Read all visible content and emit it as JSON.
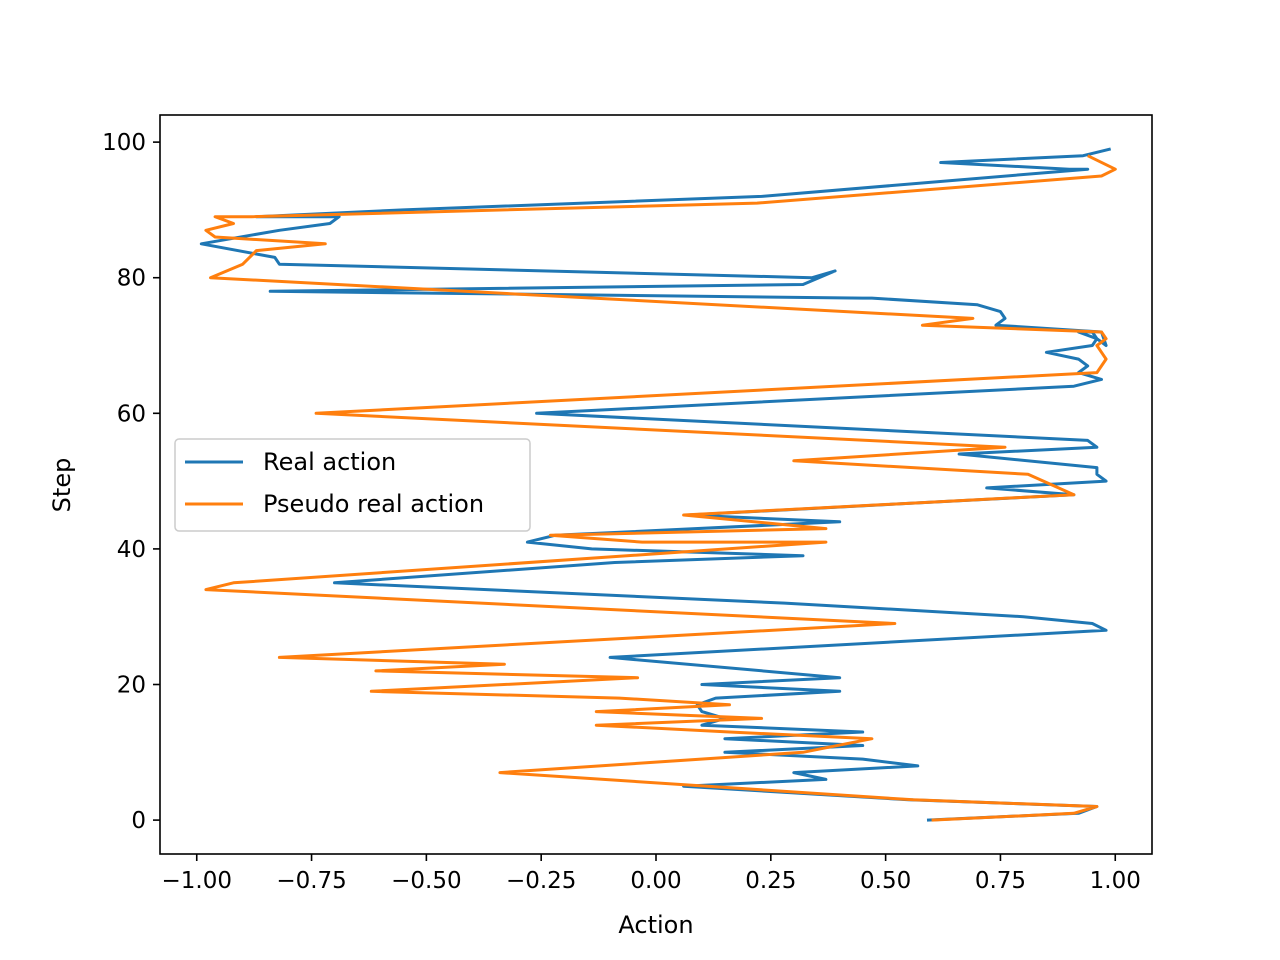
{
  "chart_data": {
    "type": "line",
    "orientation": "vertical-steps",
    "xlabel": "Action",
    "ylabel": "Step",
    "xlim": [
      -1.08,
      1.08
    ],
    "ylim": [
      -5,
      104
    ],
    "xticks": [
      -1.0,
      -0.75,
      -0.5,
      -0.25,
      0.0,
      0.25,
      0.5,
      0.75,
      1.0
    ],
    "xtick_labels": [
      "−1.00",
      "−0.75",
      "−0.50",
      "−0.25",
      "0.00",
      "0.25",
      "0.50",
      "0.75",
      "1.00"
    ],
    "yticks": [
      0,
      20,
      40,
      60,
      80,
      100
    ],
    "ytick_labels": [
      "0",
      "20",
      "40",
      "60",
      "80",
      "100"
    ],
    "grid": false,
    "legend_position": "center-left",
    "series": [
      {
        "name": "Real action",
        "color": "#1f77b4",
        "x": [
          0.59,
          0.92,
          0.96,
          0.55,
          0.06,
          0.37,
          0.3,
          0.57,
          0.45,
          0.15,
          0.45,
          0.15,
          0.45,
          0.1,
          0.15,
          0.1,
          0.09,
          0.13,
          0.4,
          0.1,
          0.4,
          -0.1,
          0.98,
          0.95,
          0.8,
          0.28,
          -0.7,
          -0.09,
          0.32,
          -0.14,
          -0.28,
          -0.22,
          0.4,
          0.07,
          0.91,
          0.72,
          0.98,
          0.96,
          0.96,
          0.66,
          0.96,
          0.94,
          -0.26,
          0.91,
          0.97,
          0.92,
          0.94,
          0.92,
          0.85,
          0.95,
          0.96,
          0.95,
          0.92,
          0.96,
          0.98,
          0.97,
          0.74,
          0.76,
          0.75,
          0.7,
          0.47,
          0.45,
          -0.84,
          0.32,
          0.39,
          0.34,
          -0.82,
          -0.83,
          -0.99,
          -0.82,
          -0.71,
          -0.69,
          -0.87,
          -0.55,
          0.23,
          0.94,
          0.9,
          0.62,
          0.93,
          0.99
        ],
        "y": [
          0,
          1,
          2,
          3,
          5,
          6,
          7,
          8,
          9,
          10,
          11,
          12,
          13,
          14,
          15,
          16,
          17,
          18,
          19,
          20,
          21,
          24,
          28,
          29,
          30,
          32,
          35,
          38,
          39,
          40,
          41,
          42,
          44,
          45,
          48,
          49,
          50,
          51,
          52,
          54,
          55,
          56,
          60,
          64,
          65,
          66,
          67,
          68,
          69,
          70,
          71,
          72,
          72,
          71,
          70,
          72,
          73,
          74,
          75,
          76,
          77,
          77,
          78,
          79,
          81,
          80,
          82,
          83,
          85,
          87,
          88,
          89,
          89,
          90,
          92,
          96,
          96,
          97,
          98,
          99
        ]
      },
      {
        "name": "Pseudo real action",
        "color": "#ff7f0e",
        "x": [
          0.6,
          0.91,
          0.96,
          0.56,
          -0.34,
          0.32,
          0.47,
          0.16,
          -0.13,
          0.23,
          -0.13,
          0.16,
          -0.08,
          -0.62,
          -0.04,
          -0.61,
          -0.33,
          -0.82,
          0.52,
          -0.98,
          -0.92,
          0.37,
          -0.03,
          -0.23,
          0.37,
          0.06,
          0.91,
          0.81,
          0.3,
          0.76,
          -0.74,
          0.96,
          0.98,
          0.97,
          0.96,
          0.98,
          0.97,
          0.58,
          0.69,
          -0.97,
          -0.9,
          -0.87,
          -0.72,
          -0.96,
          -0.98,
          -0.92,
          -0.96,
          -0.88,
          0.22,
          0.97,
          1.0,
          0.94
        ],
        "y": [
          0,
          1,
          2,
          3,
          7,
          10,
          12,
          13,
          14,
          15,
          16,
          17,
          18,
          19,
          21,
          22,
          23,
          24,
          29,
          34,
          35,
          41,
          41,
          42,
          43,
          45,
          48,
          51,
          53,
          55,
          60,
          66,
          68,
          69,
          70,
          71,
          72,
          73,
          74,
          80,
          82,
          84,
          85,
          86,
          87,
          88,
          89,
          89,
          91,
          95,
          96,
          98
        ]
      }
    ]
  }
}
